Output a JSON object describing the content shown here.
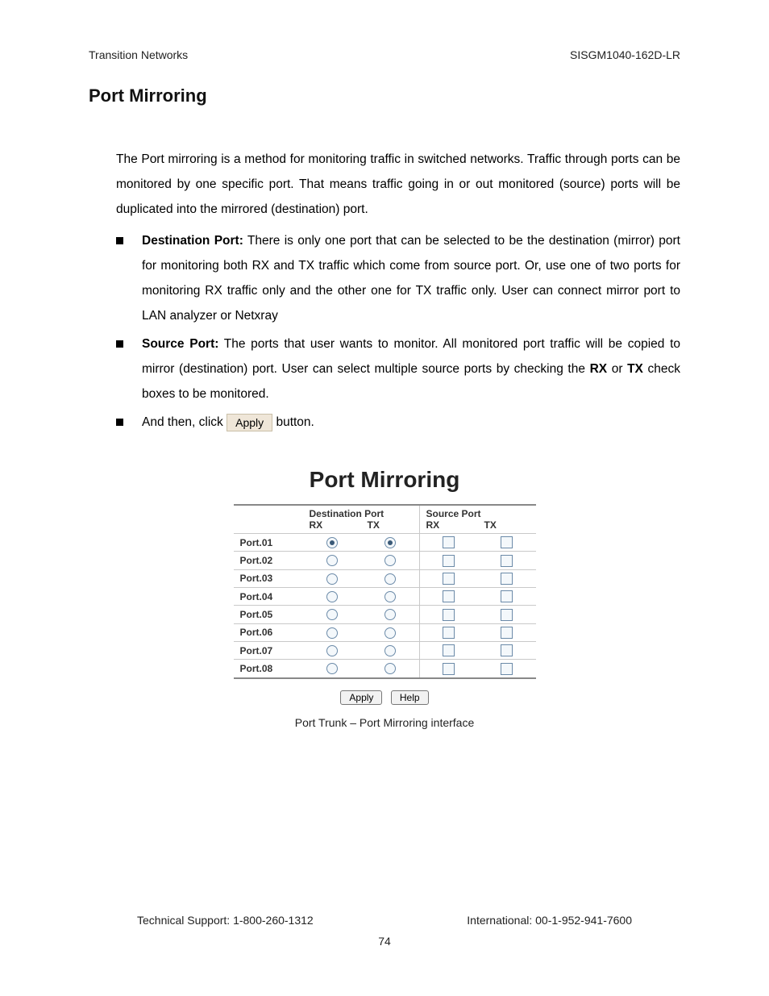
{
  "header": {
    "left": "Transition Networks",
    "right": "SISGM1040-162D-LR"
  },
  "title": "Port Mirroring",
  "intro": "The Port mirroring is a method for monitoring traffic in switched networks. Traffic through ports can be monitored by one specific port. That means traffic going in or out monitored (source) ports will be duplicated into the mirrored (destination) port.",
  "bullets": {
    "dest_label": "Destination Port:",
    "dest_text": " There is only one port that can be selected to be the destination (mirror) port for monitoring both RX and TX traffic which come from source port. Or, use one of two ports for monitoring RX traffic only and the other one for TX traffic only. User can connect mirror port to LAN analyzer or Netxray",
    "src_label": "Source Port:",
    "src_text_a": " The ports that user wants to monitor. All monitored port traffic will be copied to mirror (destination) port. User can select multiple source ports by checking the ",
    "rx": "RX",
    "or": " or ",
    "tx": "TX",
    "src_text_b": " check boxes to be monitored.",
    "andthen_a": "And then, click ",
    "apply_label": "Apply",
    "andthen_b": " button."
  },
  "figure": {
    "title": "Port Mirroring",
    "dest_group": "Destination Port",
    "src_group": "Source Port",
    "rx": "RX",
    "tx": "TX",
    "ports": [
      {
        "label": "Port.01",
        "dest_rx": true,
        "dest_tx": true
      },
      {
        "label": "Port.02",
        "dest_rx": false,
        "dest_tx": false
      },
      {
        "label": "Port.03",
        "dest_rx": false,
        "dest_tx": false
      },
      {
        "label": "Port.04",
        "dest_rx": false,
        "dest_tx": false
      },
      {
        "label": "Port.05",
        "dest_rx": false,
        "dest_tx": false
      },
      {
        "label": "Port.06",
        "dest_rx": false,
        "dest_tx": false
      },
      {
        "label": "Port.07",
        "dest_rx": false,
        "dest_tx": false
      },
      {
        "label": "Port.08",
        "dest_rx": false,
        "dest_tx": false
      }
    ],
    "apply": "Apply",
    "help": "Help",
    "caption": "Port Trunk – Port Mirroring interface"
  },
  "footer": {
    "left": "Technical Support: 1-800-260-1312",
    "right": "International: 00-1-952-941-7600",
    "page": "74"
  },
  "style": {
    "page_bg": "#ffffff",
    "text_color": "#000000",
    "rule_color": "#c9c9c9",
    "apply_bg": "#efe6d8",
    "apply_border": "#c9bfa8",
    "control_border": "#6b8aa8",
    "control_bg": "#f4f8fb",
    "title_fontsize_pt": 16,
    "body_fontsize_pt": 12,
    "figure_title_fontsize_pt": 21
  }
}
